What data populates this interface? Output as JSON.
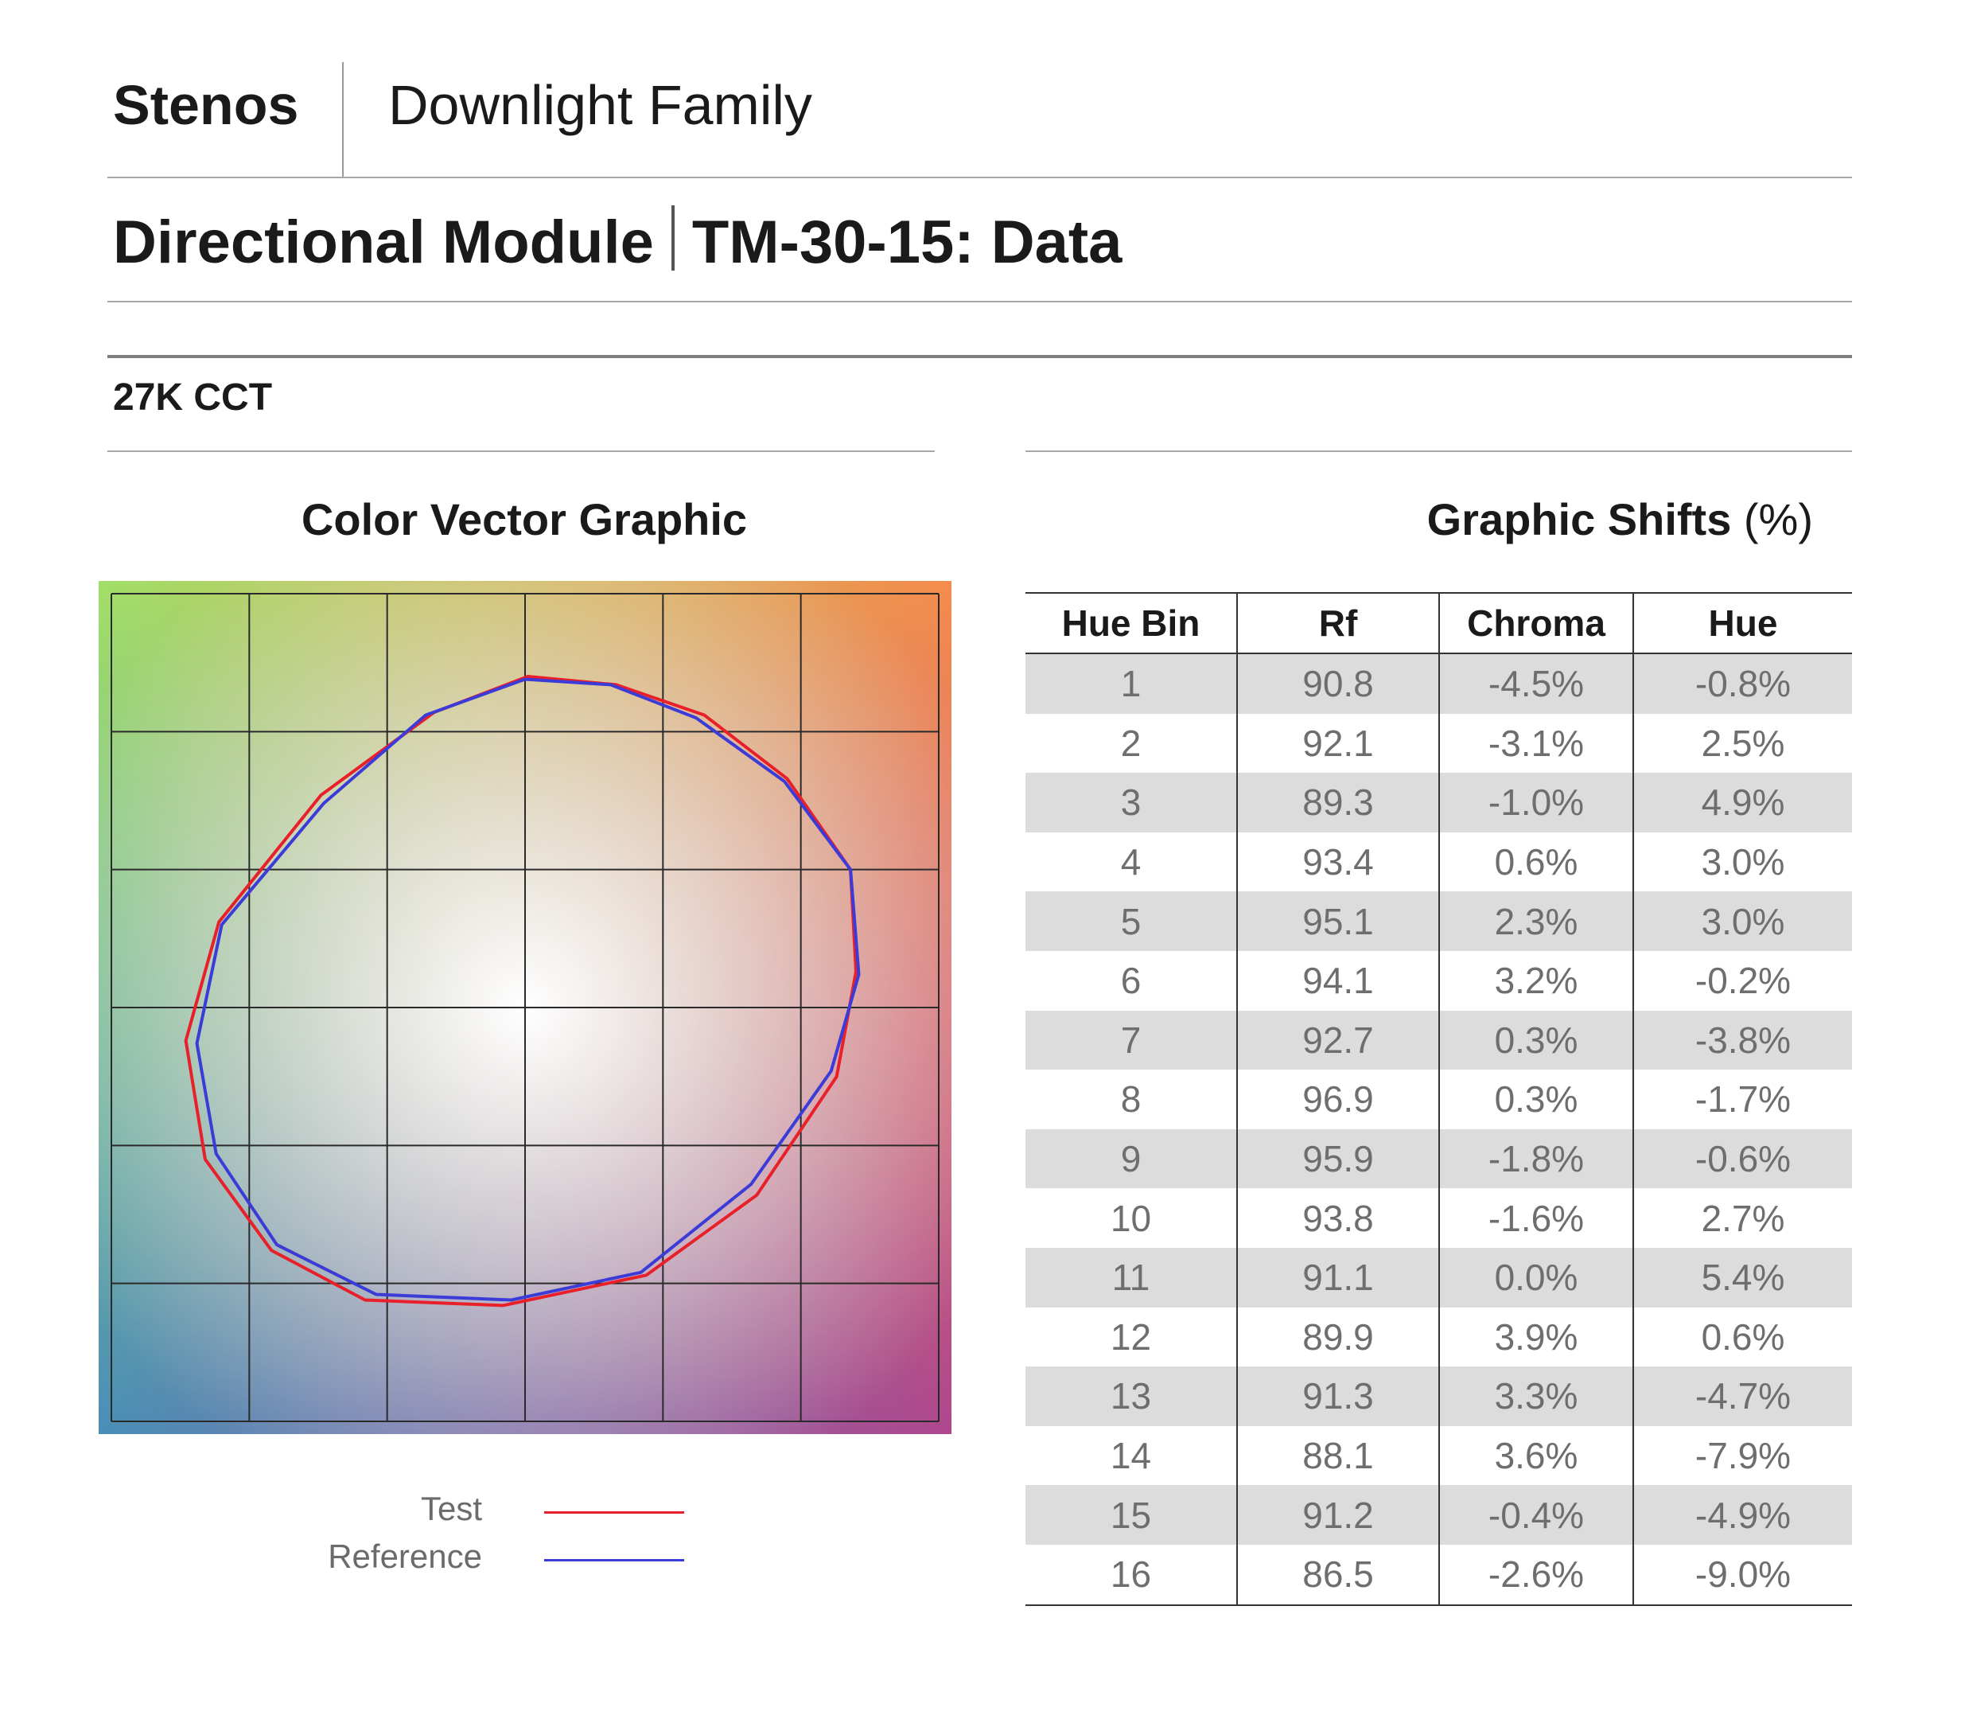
{
  "header": {
    "brand": "Stenos",
    "family": "Downlight Family",
    "module": "Directional Module",
    "subtitle": "TM-30-15: Data"
  },
  "section": {
    "cct": "27K CCT"
  },
  "chart_data": {
    "type": "line",
    "title": "Color Vector Graphic",
    "series": [
      {
        "name": "Test",
        "color": "#e8202a",
        "x": [
          0.01,
          0.33,
          0.65,
          0.95,
          1.18,
          1.2,
          1.13,
          0.84,
          0.44,
          -0.08,
          -0.58,
          -0.92,
          -1.16,
          -1.23,
          -1.11,
          -0.74,
          -0.33
        ],
        "y": [
          1.2,
          1.17,
          1.06,
          0.83,
          0.5,
          0.13,
          -0.25,
          -0.68,
          -0.97,
          -1.08,
          -1.06,
          -0.88,
          -0.55,
          -0.12,
          0.31,
          0.77,
          1.07
        ]
      },
      {
        "name": "Reference",
        "color": "#3b3bd8",
        "x": [
          0.0,
          0.31,
          0.62,
          0.94,
          1.18,
          1.21,
          1.11,
          0.82,
          0.42,
          -0.05,
          -0.54,
          -0.9,
          -1.12,
          -1.19,
          -1.1,
          -0.73,
          -0.36
        ],
        "y": [
          1.19,
          1.17,
          1.05,
          0.82,
          0.5,
          0.12,
          -0.23,
          -0.64,
          -0.96,
          -1.06,
          -1.04,
          -0.86,
          -0.53,
          -0.13,
          0.3,
          0.74,
          1.06
        ]
      }
    ],
    "xlim": [
      -1.5,
      1.5
    ],
    "ylim": [
      -1.5,
      1.5
    ],
    "grid": true,
    "legend": "bottom",
    "background_colors": {
      "top_left": "#a2df68",
      "top_right": "#f58c4d",
      "bottom_left": "#4a8fb8",
      "bottom_right": "#b0478f",
      "center": "#ffffff"
    }
  },
  "table": {
    "title": "Graphic Shifts",
    "title_unit": "(%)",
    "columns": [
      "Hue Bin",
      "Rf",
      "Chroma",
      "Hue"
    ],
    "rows": [
      [
        "1",
        "90.8",
        "-4.5%",
        "-0.8%"
      ],
      [
        "2",
        "92.1",
        "-3.1%",
        "2.5%"
      ],
      [
        "3",
        "89.3",
        "-1.0%",
        "4.9%"
      ],
      [
        "4",
        "93.4",
        "0.6%",
        "3.0%"
      ],
      [
        "5",
        "95.1",
        "2.3%",
        "3.0%"
      ],
      [
        "6",
        "94.1",
        "3.2%",
        "-0.2%"
      ],
      [
        "7",
        "92.7",
        "0.3%",
        "-3.8%"
      ],
      [
        "8",
        "96.9",
        "0.3%",
        "-1.7%"
      ],
      [
        "9",
        "95.9",
        "-1.8%",
        "-0.6%"
      ],
      [
        "10",
        "93.8",
        "-1.6%",
        "2.7%"
      ],
      [
        "11",
        "91.1",
        "0.0%",
        "5.4%"
      ],
      [
        "12",
        "89.9",
        "3.9%",
        "0.6%"
      ],
      [
        "13",
        "91.3",
        "3.3%",
        "-4.7%"
      ],
      [
        "14",
        "88.1",
        "3.6%",
        "-7.9%"
      ],
      [
        "15",
        "91.2",
        "-0.4%",
        "-4.9%"
      ],
      [
        "16",
        "86.5",
        "-2.6%",
        "-9.0%"
      ]
    ]
  }
}
